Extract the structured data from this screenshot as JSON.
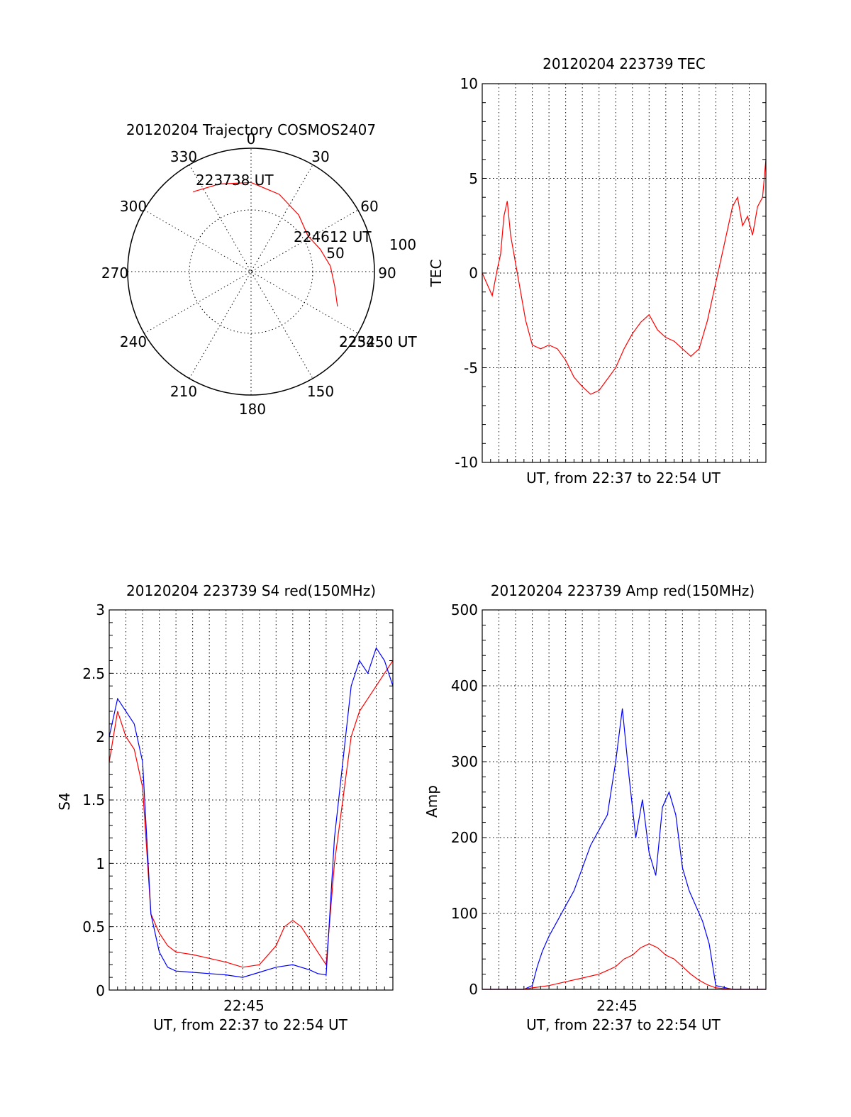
{
  "chart_data": [
    {
      "type": "polar",
      "title": "20120204 Trajectory COSMOS2407",
      "angle_labels": [
        "0",
        "30",
        "60",
        "90",
        "150",
        "180",
        "210",
        "240",
        "270",
        "300",
        "330"
      ],
      "radius_labels": [
        "50",
        "100"
      ],
      "rlim": [
        0,
        100
      ],
      "grid": true,
      "track": {
        "color": "#ff0000",
        "points": [
          {
            "az": 324,
            "el": 18
          },
          {
            "az": 340,
            "el": 22
          },
          {
            "az": 0,
            "el": 25
          },
          {
            "az": 20,
            "el": 30
          },
          {
            "az": 40,
            "el": 36
          },
          {
            "az": 58,
            "el": 41
          },
          {
            "az": 72,
            "el": 37
          },
          {
            "az": 86,
            "el": 32
          },
          {
            "az": 100,
            "el": 28
          },
          {
            "az": 112,
            "el": 22
          }
        ]
      },
      "annotations": [
        "223738 UT",
        "224612 UT",
        "223450 UT",
        "225250 UT"
      ]
    },
    {
      "type": "line",
      "title": "20120204 223739 TEC",
      "xlabel": "UT, from 22:37 to 22:54 UT",
      "ylabel": "TEC",
      "ylim": [
        -10,
        10
      ],
      "xlim": [
        0,
        17
      ],
      "yticks": [
        "10",
        "5",
        "0",
        "-5",
        "-10"
      ],
      "grid": true,
      "series": [
        {
          "color": "#ff0000",
          "x": [
            0,
            0.3,
            0.6,
            0.9,
            1.1,
            1.3,
            1.5,
            1.7,
            1.9,
            2.2,
            2.6,
            3.0,
            3.5,
            4.0,
            4.5,
            5.0,
            5.5,
            6.0,
            6.5,
            7.0,
            7.5,
            8.0,
            8.5,
            9.0,
            9.5,
            10.0,
            10.5,
            11.0,
            11.5,
            12.0,
            12.5,
            13.0,
            13.5,
            14.0,
            14.5,
            15.0,
            15.3,
            15.6,
            15.9,
            16.2,
            16.5,
            16.8,
            17.0
          ],
          "y": [
            0,
            -0.6,
            -1.2,
            0.2,
            1.0,
            3.0,
            3.8,
            2.0,
            1.0,
            -0.5,
            -2.5,
            -3.8,
            -4.0,
            -3.8,
            -4.0,
            -4.6,
            -5.5,
            -6.0,
            -6.4,
            -6.2,
            -5.6,
            -5.0,
            -4.0,
            -3.2,
            -2.6,
            -2.2,
            -3.0,
            -3.4,
            -3.6,
            -4.0,
            -4.4,
            -4.0,
            -2.5,
            -0.5,
            1.5,
            3.5,
            4.0,
            2.5,
            3.0,
            2.0,
            3.5,
            4.0,
            6.0
          ]
        }
      ]
    },
    {
      "type": "line",
      "title": "20120204 223739 S4 red(150MHz)",
      "xlabel": "UT, from 22:37 to 22:54 UT",
      "ylabel": "S4",
      "ylim": [
        0,
        3
      ],
      "xlim": [
        0,
        17
      ],
      "xticks": [
        "22:45"
      ],
      "yticks": [
        "3",
        "2.5",
        "2",
        "1.5",
        "1",
        "0.5",
        "0"
      ],
      "grid": true,
      "series": [
        {
          "color": "#0000ff",
          "x": [
            0,
            0.5,
            1.0,
            1.5,
            2.0,
            2.5,
            3.0,
            3.5,
            4.0,
            5.0,
            6.0,
            7.0,
            8.0,
            9.0,
            10.0,
            11.0,
            12.0,
            12.5,
            13.0,
            13.5,
            14.0,
            14.5,
            15.0,
            15.5,
            16.0,
            16.5,
            17.0
          ],
          "y": [
            2.0,
            2.3,
            2.2,
            2.1,
            1.8,
            0.6,
            0.3,
            0.18,
            0.15,
            0.14,
            0.13,
            0.12,
            0.1,
            0.14,
            0.18,
            0.2,
            0.16,
            0.13,
            0.12,
            1.2,
            1.8,
            2.4,
            2.6,
            2.5,
            2.7,
            2.6,
            2.4
          ]
        },
        {
          "color": "#ff0000",
          "x": [
            0,
            0.5,
            1.0,
            1.5,
            2.0,
            2.5,
            3.0,
            3.5,
            4.0,
            5.0,
            6.0,
            7.0,
            8.0,
            9.0,
            10.0,
            10.5,
            11.0,
            11.5,
            12.0,
            12.5,
            13.0,
            13.5,
            14.0,
            14.5,
            15.0,
            15.5,
            16.0,
            16.5,
            17.0
          ],
          "y": [
            1.8,
            2.2,
            2.0,
            1.9,
            1.6,
            0.6,
            0.45,
            0.35,
            0.3,
            0.28,
            0.25,
            0.22,
            0.18,
            0.2,
            0.35,
            0.5,
            0.55,
            0.5,
            0.4,
            0.3,
            0.2,
            1.0,
            1.5,
            2.0,
            2.2,
            2.3,
            2.4,
            2.5,
            2.6
          ]
        }
      ]
    },
    {
      "type": "line",
      "title": "20120204 223739 Amp red(150MHz)",
      "xlabel": "UT, from 22:37 to 22:54 UT",
      "ylabel": "Amp",
      "ylim": [
        0,
        500
      ],
      "xlim": [
        0,
        17
      ],
      "xticks": [
        "22:45"
      ],
      "yticks": [
        "500",
        "400",
        "300",
        "200",
        "100",
        "0"
      ],
      "grid": true,
      "series": [
        {
          "color": "#0000ff",
          "x": [
            0,
            1.5,
            2.5,
            3.0,
            3.3,
            3.6,
            4.0,
            4.5,
            5.0,
            5.5,
            6.0,
            6.5,
            7.0,
            7.5,
            8.0,
            8.4,
            8.8,
            9.2,
            9.6,
            10.0,
            10.4,
            10.8,
            11.2,
            11.6,
            12.0,
            12.4,
            12.8,
            13.2,
            13.6,
            14.0,
            15.0,
            17.0
          ],
          "y": [
            0,
            0,
            0,
            5,
            30,
            50,
            70,
            90,
            110,
            130,
            160,
            190,
            210,
            230,
            300,
            370,
            280,
            200,
            250,
            180,
            150,
            240,
            260,
            230,
            160,
            130,
            110,
            90,
            60,
            5,
            0,
            0
          ]
        },
        {
          "color": "#ff0000",
          "x": [
            0,
            2.5,
            3.0,
            4.0,
            5.0,
            6.0,
            7.0,
            7.5,
            8.0,
            8.5,
            9.0,
            9.5,
            10.0,
            10.5,
            11.0,
            11.5,
            12.0,
            12.5,
            13.0,
            13.5,
            14.0,
            15.0,
            17.0
          ],
          "y": [
            0,
            0,
            2,
            5,
            10,
            15,
            20,
            25,
            30,
            40,
            45,
            55,
            60,
            55,
            45,
            40,
            30,
            20,
            12,
            6,
            2,
            0,
            0
          ]
        }
      ]
    }
  ]
}
